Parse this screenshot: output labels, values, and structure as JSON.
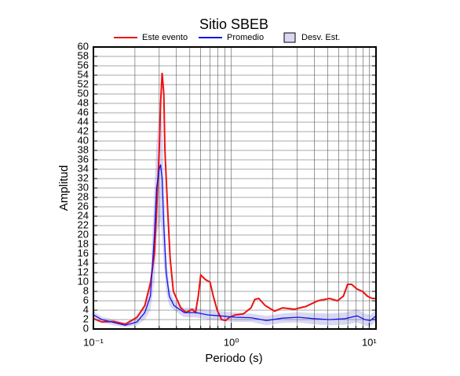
{
  "chart_data": {
    "type": "line",
    "title": "Sitio SBEB",
    "x_label": "Periodo (s)",
    "y_label": "Amplitud",
    "xlim": [
      0.1,
      11.2
    ],
    "ylim": [
      0,
      60
    ],
    "log_x": true,
    "grid": true,
    "xticks": [
      {
        "value": 0.1,
        "label": "10⁻¹"
      },
      {
        "value": 1,
        "label": "10⁰"
      },
      {
        "value": 10,
        "label": "10¹"
      }
    ],
    "xticks_minor": [
      0.2,
      0.3,
      0.4,
      0.5,
      0.6,
      0.7,
      0.8,
      0.9,
      2,
      3,
      4,
      5,
      6,
      7,
      8,
      9
    ],
    "yticks": [
      0,
      2,
      4,
      6,
      8,
      10,
      12,
      14,
      16,
      18,
      20,
      22,
      24,
      26,
      28,
      30,
      32,
      34,
      36,
      38,
      40,
      42,
      44,
      46,
      48,
      50,
      52,
      54,
      56,
      58,
      60
    ],
    "band": {
      "name": "Desv. Est.",
      "color": "#d8d8f4",
      "x": [
        0.1,
        0.115,
        0.14,
        0.17,
        0.207,
        0.236,
        0.259,
        0.277,
        0.287,
        0.3,
        0.307,
        0.315,
        0.324,
        0.337,
        0.355,
        0.384,
        0.455,
        0.554,
        0.675,
        0.821,
        1.07,
        1.39,
        1.8,
        2.35,
        3.05,
        3.96,
        5.16,
        6.7,
        8.17,
        9.29,
        10.2,
        11.2
      ],
      "upper": [
        3.8,
        2.6,
        2,
        1.4,
        2.5,
        5,
        10,
        30,
        40,
        46,
        47,
        44,
        30,
        16,
        9,
        6,
        4.5,
        4.5,
        4,
        3.8,
        3.5,
        3.3,
        2.8,
        3.3,
        3.6,
        3.4,
        3.3,
        3.5,
        4.2,
        3.3,
        3,
        4
      ],
      "lower": [
        2.2,
        1.4,
        0.8,
        0.4,
        0.8,
        2,
        4,
        10,
        20,
        22,
        23,
        20,
        14,
        8,
        5,
        4,
        2.5,
        2.5,
        2,
        1.8,
        1.5,
        1.5,
        0.8,
        1.3,
        1.4,
        1,
        0.8,
        0.9,
        1.4,
        0.7,
        0.6,
        1.6
      ]
    },
    "series": [
      {
        "name": "Este evento",
        "color": "#ee1111",
        "x": [
          0.1,
          0.115,
          0.14,
          0.17,
          0.207,
          0.236,
          0.26,
          0.277,
          0.287,
          0.3,
          0.307,
          0.315,
          0.324,
          0.33,
          0.346,
          0.36,
          0.38,
          0.43,
          0.47,
          0.52,
          0.55,
          0.576,
          0.6,
          0.65,
          0.7,
          0.74,
          0.79,
          0.85,
          0.91,
          0.97,
          1.07,
          1.22,
          1.39,
          1.48,
          1.58,
          1.76,
          2.06,
          2.35,
          2.86,
          3.48,
          4.24,
          5.16,
          5.88,
          6.5,
          6.97,
          7.45,
          8.17,
          8.94,
          9.69,
          10.5,
          11.2
        ],
        "values": [
          2.2,
          1.5,
          1.6,
          1,
          2.5,
          5,
          10,
          16,
          25,
          38,
          48,
          54.5,
          50,
          38,
          25,
          15,
          8,
          4.5,
          3.5,
          4.2,
          3.5,
          7,
          11.5,
          10.5,
          10,
          7,
          4,
          2,
          1.8,
          2.5,
          3,
          3.2,
          4.5,
          6.3,
          6.5,
          5,
          3.8,
          4.5,
          4.2,
          4.8,
          6,
          6.5,
          6,
          7,
          9.5,
          9.5,
          8.5,
          8,
          7,
          6.5,
          6.5
        ]
      },
      {
        "name": "Promedio",
        "color": "#1111ee",
        "x": [
          0.1,
          0.115,
          0.14,
          0.17,
          0.207,
          0.236,
          0.259,
          0.277,
          0.287,
          0.3,
          0.307,
          0.315,
          0.324,
          0.337,
          0.355,
          0.384,
          0.455,
          0.554,
          0.675,
          0.821,
          1.07,
          1.39,
          1.8,
          2.35,
          3.05,
          3.96,
          5.16,
          6.7,
          8.17,
          9.29,
          10.2,
          11.2
        ],
        "values": [
          3,
          2,
          1.4,
          0.8,
          1.5,
          3.5,
          7,
          20,
          30,
          34,
          35,
          32,
          22,
          12,
          7,
          5,
          3.5,
          3.5,
          3,
          2.8,
          2.5,
          2.4,
          1.8,
          2.3,
          2.5,
          2.2,
          2,
          2.2,
          2.8,
          2,
          1.8,
          2.8
        ]
      }
    ]
  }
}
